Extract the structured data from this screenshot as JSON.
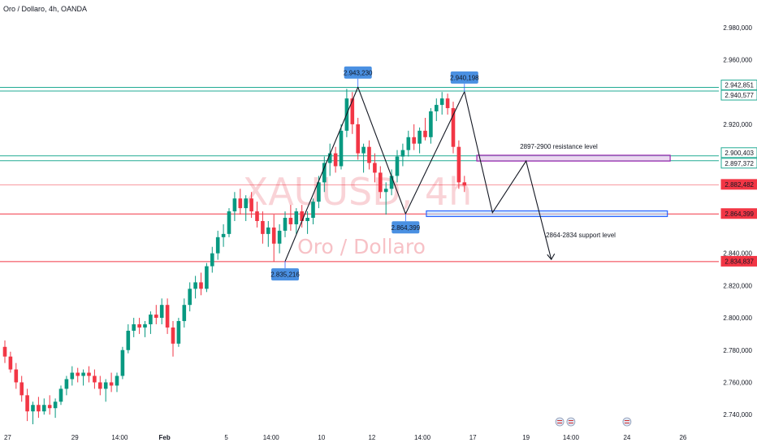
{
  "header": {
    "title": "Oro / Dollaro, 4h, OANDA"
  },
  "colors": {
    "up": "#089981",
    "down": "#f23645",
    "cyan": "#22ab94",
    "red": "#f23645",
    "label": "#2962ff",
    "purple": "#9c27b0",
    "blue": "#2962ff",
    "text": "#131722",
    "note": "#4a3aa8",
    "watermark": "#f6b7bd"
  },
  "chart_data": {
    "type": "candlestick",
    "title": "XAUUSD, 4h",
    "subtitle": "Oro / Dollaro",
    "ylim": [
      2.73,
      2.992
    ],
    "x_ticks": [
      {
        "label": "27",
        "pos": 0.5
      },
      {
        "label": "29",
        "pos": 12.5
      },
      {
        "label": "14:00",
        "pos": 20.5
      },
      {
        "label": "Feb",
        "pos": 28.5
      },
      {
        "label": "5",
        "pos": 39.5
      },
      {
        "label": "14:00",
        "pos": 47.5
      },
      {
        "label": "10",
        "pos": 56.5
      },
      {
        "label": "12",
        "pos": 65.5
      },
      {
        "label": "14:00",
        "pos": 74.5
      },
      {
        "label": "17",
        "pos": 83.5
      },
      {
        "label": "19",
        "pos": 93
      },
      {
        "label": "14:00",
        "pos": 101
      },
      {
        "label": "24",
        "pos": 111
      },
      {
        "label": "26",
        "pos": 121
      }
    ],
    "y_ticks": [
      "2.980,000",
      "2.960,000",
      "2.920,000",
      "2.840,000",
      "2.820,000",
      "2.800,000",
      "2.780,000",
      "2.760,000",
      "2.740,000"
    ],
    "y_tick_values": [
      2.98,
      2.96,
      2.92,
      2.84,
      2.82,
      2.8,
      2.78,
      2.76,
      2.74
    ],
    "candles": [
      [
        2.782,
        2.786,
        2.772,
        2.776
      ],
      [
        2.776,
        2.779,
        2.766,
        2.768
      ],
      [
        2.768,
        2.772,
        2.756,
        2.76
      ],
      [
        2.76,
        2.764,
        2.748,
        2.752
      ],
      [
        2.752,
        2.756,
        2.736,
        2.742
      ],
      [
        2.742,
        2.748,
        2.734,
        2.746
      ],
      [
        2.746,
        2.751,
        2.738,
        2.742
      ],
      [
        2.742,
        2.75,
        2.74,
        2.746
      ],
      [
        2.746,
        2.752,
        2.74,
        2.744
      ],
      [
        2.744,
        2.75,
        2.738,
        2.748
      ],
      [
        2.748,
        2.758,
        2.746,
        2.756
      ],
      [
        2.756,
        2.764,
        2.752,
        2.762
      ],
      [
        2.762,
        2.77,
        2.758,
        2.766
      ],
      [
        2.766,
        2.769,
        2.76,
        2.764
      ],
      [
        2.764,
        2.768,
        2.758,
        2.766
      ],
      [
        2.766,
        2.77,
        2.76,
        2.764
      ],
      [
        2.764,
        2.768,
        2.756,
        2.76
      ],
      [
        2.76,
        2.764,
        2.752,
        2.756
      ],
      [
        2.756,
        2.762,
        2.748,
        2.76
      ],
      [
        2.76,
        2.766,
        2.754,
        2.758
      ],
      [
        2.758,
        2.766,
        2.754,
        2.764
      ],
      [
        2.764,
        2.782,
        2.762,
        2.78
      ],
      [
        2.78,
        2.796,
        2.778,
        2.792
      ],
      [
        2.792,
        2.8,
        2.788,
        2.796
      ],
      [
        2.796,
        2.8,
        2.79,
        2.794
      ],
      [
        2.794,
        2.798,
        2.788,
        2.796
      ],
      [
        2.796,
        2.804,
        2.79,
        2.802
      ],
      [
        2.802,
        2.808,
        2.796,
        2.8
      ],
      [
        2.8,
        2.812,
        2.796,
        2.808
      ],
      [
        2.808,
        2.812,
        2.79,
        2.794
      ],
      [
        2.794,
        2.798,
        2.776,
        2.784
      ],
      [
        2.784,
        2.8,
        2.782,
        2.798
      ],
      [
        2.798,
        2.812,
        2.794,
        2.808
      ],
      [
        2.808,
        2.822,
        2.804,
        2.818
      ],
      [
        2.818,
        2.826,
        2.812,
        2.822
      ],
      [
        2.822,
        2.828,
        2.814,
        2.818
      ],
      [
        2.818,
        2.834,
        2.816,
        2.832
      ],
      [
        2.832,
        2.844,
        2.828,
        2.84
      ],
      [
        2.84,
        2.854,
        2.836,
        2.85
      ],
      [
        2.85,
        2.858,
        2.844,
        2.852
      ],
      [
        2.852,
        2.868,
        2.85,
        2.866
      ],
      [
        2.866,
        2.878,
        2.86,
        2.874
      ],
      [
        2.874,
        2.88,
        2.864,
        2.868
      ],
      [
        2.868,
        2.876,
        2.86,
        2.874
      ],
      [
        2.874,
        2.878,
        2.862,
        2.866
      ],
      [
        2.866,
        2.872,
        2.856,
        2.86
      ],
      [
        2.86,
        2.866,
        2.846,
        2.852
      ],
      [
        2.852,
        2.86,
        2.844,
        2.856
      ],
      [
        2.856,
        2.864,
        2.835,
        2.846
      ],
      [
        2.846,
        2.858,
        2.84,
        2.854
      ],
      [
        2.854,
        2.866,
        2.85,
        2.862
      ],
      [
        2.862,
        2.87,
        2.854,
        2.858
      ],
      [
        2.858,
        2.868,
        2.852,
        2.866
      ],
      [
        2.866,
        2.87,
        2.856,
        2.86
      ],
      [
        2.86,
        2.866,
        2.852,
        2.862
      ],
      [
        2.862,
        2.874,
        2.858,
        2.872
      ],
      [
        2.872,
        2.888,
        2.868,
        2.884
      ],
      [
        2.884,
        2.9,
        2.878,
        2.896
      ],
      [
        2.896,
        2.908,
        2.888,
        2.902
      ],
      [
        2.902,
        2.906,
        2.89,
        2.894
      ],
      [
        2.894,
        2.92,
        2.892,
        2.916
      ],
      [
        2.916,
        2.942,
        2.912,
        2.936
      ],
      [
        2.936,
        2.94,
        2.914,
        2.92
      ],
      [
        2.92,
        2.924,
        2.898,
        2.902
      ],
      [
        2.902,
        2.908,
        2.89,
        2.906
      ],
      [
        2.906,
        2.91,
        2.892,
        2.896
      ],
      [
        2.896,
        2.902,
        2.884,
        2.89
      ],
      [
        2.89,
        2.894,
        2.874,
        2.878
      ],
      [
        2.878,
        2.884,
        2.864,
        2.88
      ],
      [
        2.88,
        2.892,
        2.876,
        2.888
      ],
      [
        2.888,
        2.904,
        2.884,
        2.9
      ],
      [
        2.9,
        2.908,
        2.894,
        2.904
      ],
      [
        2.904,
        2.916,
        2.9,
        2.912
      ],
      [
        2.912,
        2.92,
        2.904,
        2.908
      ],
      [
        2.908,
        2.918,
        2.902,
        2.916
      ],
      [
        2.916,
        2.924,
        2.91,
        2.912
      ],
      [
        2.912,
        2.93,
        2.908,
        2.928
      ],
      [
        2.928,
        2.936,
        2.922,
        2.932
      ],
      [
        2.932,
        2.94,
        2.926,
        2.936
      ],
      [
        2.936,
        2.939,
        2.926,
        2.93
      ],
      [
        2.93,
        2.934,
        2.902,
        2.906
      ],
      [
        2.906,
        2.91,
        2.88,
        2.884
      ],
      [
        2.884,
        2.888,
        2.878,
        2.882
      ]
    ],
    "horizontal_lines": [
      {
        "price": 2.942851,
        "label": "2.942,851",
        "color": "cyan"
      },
      {
        "price": 2.940577,
        "label": "2.940,577",
        "color": "cyan"
      },
      {
        "price": 2.900403,
        "label": "2.900,403",
        "color": "cyan"
      },
      {
        "price": 2.897372,
        "label": "2.897,372",
        "color": "cyan"
      },
      {
        "price": 2.882482,
        "label": "2.882,482",
        "color": "red"
      },
      {
        "price": 2.864399,
        "label": "2.864,399",
        "color": "red"
      },
      {
        "price": 2.834837,
        "label": "2.834,837",
        "color": "red"
      }
    ],
    "pattern_points": [
      [
        50,
        2.835
      ],
      [
        63,
        2.943
      ],
      [
        71.5,
        2.8645
      ],
      [
        82,
        2.9402
      ]
    ],
    "projection_points": [
      [
        82,
        2.9402
      ],
      [
        87,
        2.8652
      ],
      [
        93,
        2.8972
      ],
      [
        97.5,
        2.8362
      ]
    ],
    "pivot_labels": [
      {
        "text": "2.835,216",
        "x": 50,
        "price": 2.835216,
        "pos": "below"
      },
      {
        "text": "2.943,230",
        "x": 63,
        "price": 2.94323,
        "pos": "above"
      },
      {
        "text": "2.864,399",
        "x": 71.5,
        "price": 2.864399,
        "pos": "below"
      },
      {
        "text": "2.940,198",
        "x": 82,
        "price": 2.940198,
        "pos": "above"
      }
    ],
    "zones": [
      {
        "name": "resistance",
        "x0": 84.5,
        "x1": 119,
        "p0": 2.9008,
        "p1": 2.8972,
        "label": "2897-2900 resistance level",
        "color": "purple"
      },
      {
        "name": "support",
        "x0": 75.5,
        "x1": 118.5,
        "p0": 2.8663,
        "p1": 2.8628,
        "label": "2864-2834 support level",
        "color": "blue"
      }
    ],
    "flags": [
      99,
      101,
      111
    ]
  }
}
